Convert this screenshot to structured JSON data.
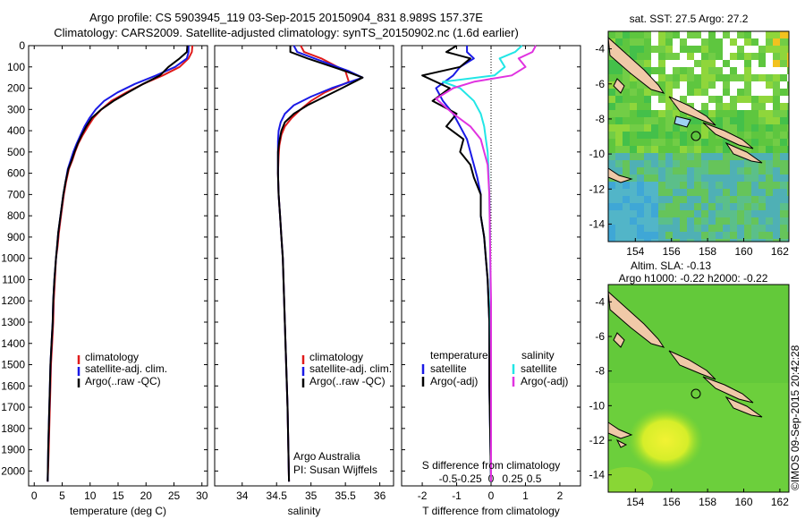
{
  "header": {
    "title_line1": "Argo profile: CS 5903945_119 03-Sep-2015 20150904_831 8.989S 157.37E",
    "title_line2": "Climatology: CARS2009. Satellite-adjusted climatology: synTS_20150902.nc (1.6d earlier)"
  },
  "colors": {
    "climatology": "#e01b1b",
    "satellite": "#1a1ae6",
    "argo": "#000000",
    "sal_satellite": "#22e6e6",
    "sal_argo": "#e033e0"
  },
  "chart_data": [
    {
      "id": "temperature",
      "type": "line",
      "xlabel": "temperature (deg C)",
      "ylabel": "",
      "xlim": [
        -1,
        31
      ],
      "ylim": [
        0,
        2070
      ],
      "y_inverted": true,
      "xticks": [
        "0",
        "5",
        "10",
        "15",
        "20",
        "25",
        "30"
      ],
      "xtick_values": [
        0,
        5,
        10,
        15,
        20,
        25,
        30
      ],
      "ytick_values": [
        0,
        100,
        200,
        300,
        400,
        500,
        600,
        700,
        800,
        900,
        1000,
        1100,
        1200,
        1300,
        1400,
        1500,
        1600,
        1700,
        1800,
        1900,
        2000
      ],
      "legend": [
        "climatology",
        "satellite-adj. clim.",
        "Argo(..raw -QC)"
      ],
      "series": [
        {
          "name": "climatology",
          "color": "#e01b1b",
          "x": [
            28.3,
            28.2,
            27.6,
            26.0,
            23.0,
            19.5,
            16.5,
            13.8,
            12.0,
            10.6,
            9.6,
            8.7,
            7.9,
            7.3,
            6.8,
            6.2,
            5.7,
            5.3,
            5.0,
            4.7,
            4.4,
            4.2,
            3.9,
            3.7,
            3.5,
            3.4,
            3.2,
            3.0,
            2.9,
            2.7,
            2.6,
            2.4
          ],
          "y": [
            0,
            30,
            60,
            100,
            140,
            180,
            220,
            260,
            300,
            340,
            380,
            420,
            460,
            500,
            540,
            580,
            640,
            700,
            760,
            820,
            880,
            940,
            1000,
            1100,
            1200,
            1300,
            1400,
            1500,
            1600,
            1800,
            1900,
            2050
          ]
        },
        {
          "name": "satellite-adj. clim.",
          "color": "#1a1ae6",
          "x": [
            27.6,
            27.6,
            27.3,
            25.2,
            21.8,
            18.0,
            14.9,
            12.5,
            11.0,
            9.9,
            9.0,
            8.3,
            7.6,
            7.0,
            6.5,
            6.0,
            5.6,
            5.2,
            4.9,
            4.6,
            4.3,
            4.1,
            3.9,
            3.6,
            3.4,
            3.3,
            3.1,
            2.9,
            2.8,
            2.6,
            2.5,
            2.4
          ],
          "y": [
            0,
            30,
            60,
            100,
            140,
            180,
            220,
            260,
            300,
            340,
            380,
            420,
            460,
            500,
            540,
            580,
            640,
            700,
            760,
            820,
            880,
            940,
            1000,
            1100,
            1200,
            1300,
            1400,
            1500,
            1600,
            1800,
            1900,
            2050
          ]
        },
        {
          "name": "Argo(..raw -QC)",
          "color": "#000000",
          "x": [
            27.4,
            27.3,
            26.0,
            24.0,
            22.5,
            19.5,
            16.8,
            14.2,
            12.0,
            10.3,
            9.3,
            8.5,
            7.8,
            7.2,
            6.7,
            6.1,
            5.6,
            5.2,
            4.9,
            4.6,
            4.3,
            4.1,
            3.9,
            3.6,
            3.4,
            3.3,
            3.1,
            2.9,
            2.8,
            2.6,
            2.5,
            2.4
          ],
          "y": [
            0,
            30,
            60,
            100,
            140,
            180,
            220,
            260,
            300,
            340,
            380,
            420,
            460,
            500,
            540,
            580,
            640,
            700,
            760,
            820,
            880,
            940,
            1000,
            1100,
            1200,
            1300,
            1400,
            1500,
            1600,
            1800,
            1900,
            2050
          ]
        }
      ]
    },
    {
      "id": "salinity",
      "type": "line",
      "xlabel": "salinity",
      "xlim": [
        33.6,
        36.2
      ],
      "ylim": [
        0,
        2070
      ],
      "y_inverted": true,
      "xticks": [
        "34",
        "34.5",
        "35",
        "35.5",
        "36"
      ],
      "xtick_values": [
        34,
        34.5,
        35,
        35.5,
        36
      ],
      "legend": [
        "climatology",
        "satellite-adj. clim.",
        "Argo(..raw -QC)"
      ],
      "annotation_line1": "Argo Australia",
      "annotation_line2": "PI: Susan Wijffels",
      "series": [
        {
          "name": "climatology",
          "color": "#e01b1b",
          "x": [
            34.85,
            34.9,
            35.15,
            35.5,
            35.55,
            35.2,
            35.0,
            34.85,
            34.72,
            34.62,
            34.57,
            34.54,
            34.53,
            34.52,
            34.53,
            34.55,
            34.57,
            34.59,
            34.61,
            34.63,
            34.66,
            34.68
          ],
          "y": [
            0,
            30,
            60,
            120,
            170,
            220,
            260,
            300,
            340,
            380,
            420,
            470,
            520,
            600,
            700,
            800,
            900,
            1000,
            1200,
            1400,
            1700,
            2050
          ]
        },
        {
          "name": "satellite-adj. clim.",
          "color": "#1a1ae6",
          "x": [
            34.75,
            34.8,
            35.05,
            35.55,
            35.75,
            35.3,
            35.0,
            34.75,
            34.62,
            34.56,
            34.53,
            34.52,
            34.52,
            34.52,
            34.53,
            34.55,
            34.57,
            34.59,
            34.61,
            34.63,
            34.66,
            34.68
          ],
          "y": [
            0,
            30,
            60,
            120,
            150,
            200,
            240,
            280,
            320,
            360,
            400,
            450,
            500,
            600,
            700,
            800,
            900,
            1000,
            1200,
            1400,
            1700,
            2050
          ]
        },
        {
          "name": "Argo(..raw -QC)",
          "color": "#000000",
          "x": [
            34.7,
            34.7,
            34.95,
            35.5,
            35.75,
            35.45,
            35.2,
            34.95,
            34.75,
            34.62,
            34.57,
            34.54,
            34.52,
            34.52,
            34.53,
            34.55,
            34.57,
            34.59,
            34.61,
            34.63,
            34.66,
            34.68
          ],
          "y": [
            0,
            30,
            60,
            120,
            150,
            200,
            240,
            280,
            320,
            360,
            400,
            450,
            500,
            600,
            700,
            800,
            900,
            1000,
            1200,
            1400,
            1700,
            2050
          ]
        }
      ]
    },
    {
      "id": "difference",
      "type": "line",
      "xlabel": "T difference from climatology",
      "xlabel_top": "S difference from climatology",
      "xlim": [
        -2.6,
        2.6
      ],
      "ylim": [
        0,
        2070
      ],
      "y_inverted": true,
      "xticks": [
        "-2",
        "-1",
        "0",
        "1",
        "2"
      ],
      "xtick_values": [
        -2,
        -1,
        0,
        1,
        2
      ],
      "sticks": [
        "-0.5",
        "-0.25",
        "0",
        "0.25",
        "0.5"
      ],
      "stick_values": [
        -1.25,
        -0.625,
        0,
        0.625,
        1.25
      ],
      "legend_temp_title": "temperature",
      "legend_sal_title": "salinity",
      "legend": [
        "satellite",
        "Argo(-adj)",
        "satellite",
        "Argo(-adj)"
      ],
      "series": [
        {
          "name": "temperature satellite",
          "color": "#1a1ae6",
          "x": [
            -0.7,
            -0.7,
            -0.5,
            -0.9,
            -1.1,
            -1.6,
            -1.4,
            -1.1,
            -0.9,
            -0.7,
            -0.6,
            -0.5,
            -0.4,
            -0.3,
            -0.3,
            -0.2,
            -0.15,
            -0.1,
            -0.05,
            -0.05,
            0
          ],
          "y": [
            0,
            30,
            60,
            100,
            140,
            200,
            260,
            320,
            380,
            440,
            500,
            560,
            620,
            700,
            800,
            900,
            1000,
            1100,
            1300,
            1600,
            2050
          ]
        },
        {
          "name": "temperature Argo(-adj)",
          "color": "#000000",
          "x": [
            -1.0,
            -1.3,
            -0.6,
            -0.9,
            -2.0,
            -1.2,
            -1.7,
            -1.0,
            -1.3,
            -0.8,
            -0.9,
            -0.6,
            -0.5,
            -0.3,
            -0.3,
            -0.2,
            -0.15,
            -0.1,
            -0.05,
            -0.05,
            0
          ],
          "y": [
            0,
            30,
            60,
            100,
            140,
            200,
            260,
            320,
            380,
            440,
            500,
            560,
            620,
            700,
            800,
            900,
            1000,
            1100,
            1300,
            1600,
            2050
          ]
        },
        {
          "name": "salinity satellite",
          "color": "#22e6e6",
          "x": [
            0.9,
            0.7,
            0.25,
            0.4,
            0.1,
            -1.4,
            -0.9,
            -0.5,
            -0.3,
            -0.2,
            -0.15,
            -0.1,
            -0.08,
            -0.05,
            -0.03,
            -0.02,
            0,
            0
          ],
          "y": [
            0,
            30,
            60,
            100,
            140,
            170,
            200,
            260,
            320,
            380,
            440,
            500,
            560,
            700,
            900,
            1100,
            1500,
            2050
          ]
        },
        {
          "name": "salinity Argo(-adj)",
          "color": "#e033e0",
          "x": [
            1.3,
            1.2,
            0.8,
            1.0,
            0.6,
            -0.5,
            -1.1,
            -1.6,
            -1.1,
            -0.6,
            -0.3,
            -0.2,
            -0.1,
            -0.05,
            -0.03,
            0,
            0
          ],
          "y": [
            0,
            30,
            60,
            100,
            140,
            170,
            200,
            250,
            320,
            380,
            440,
            500,
            560,
            700,
            900,
            1200,
            2050
          ]
        }
      ]
    }
  ],
  "maps": {
    "sst": {
      "title": "sat. SST: 27.5 Argo: 27.2",
      "xticks": [
        "154",
        "156",
        "158",
        "160",
        "162"
      ],
      "xtick_values": [
        154,
        156,
        158,
        160,
        162
      ],
      "yticks": [
        "-4",
        "-6",
        "-8",
        "-10",
        "-12",
        "-14"
      ],
      "ytick_values": [
        -4,
        -6,
        -8,
        -10,
        -12,
        -14
      ],
      "xlim": [
        152.5,
        162.5
      ],
      "ylim": [
        -15,
        -3
      ]
    },
    "sla": {
      "title1": "Altim. SLA: -0.13",
      "title2": "Argo h1000: -0.22 h2000: -0.22",
      "xticks": [
        "154",
        "156",
        "158",
        "160",
        "162"
      ],
      "xtick_values": [
        154,
        156,
        158,
        160,
        162
      ],
      "yticks": [
        "-4",
        "-6",
        "-8",
        "-10",
        "-12",
        "-14"
      ],
      "ytick_values": [
        -4,
        -6,
        -8,
        -10,
        -12,
        -14
      ],
      "xlim": [
        152.5,
        162.5
      ],
      "ylim": [
        -15,
        -3
      ]
    }
  },
  "side_label": "©IMOS 09-Sep-2015 20:42:28"
}
